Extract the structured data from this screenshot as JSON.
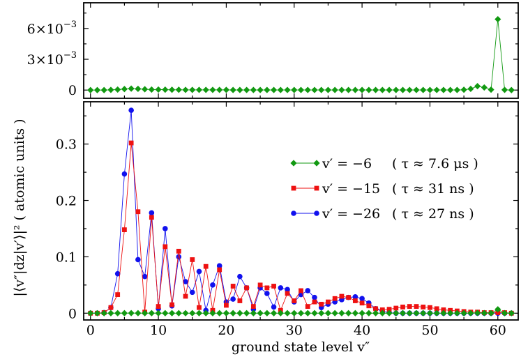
{
  "chart_data": {
    "type": "line",
    "xlabel": "ground state level  v″",
    "ylabel": "|⟨v″|dz|v′⟩|² ( atomic units )",
    "x_range": [
      -1,
      63
    ],
    "x_ticks": [
      "0",
      "10",
      "20",
      "30",
      "40",
      "50",
      "60"
    ],
    "x_tick_values": [
      0,
      10,
      20,
      30,
      40,
      50,
      60
    ],
    "top_panel": {
      "ylim": [
        -0.0008,
        0.0085
      ],
      "y_tick_values": [
        0,
        0.003,
        0.006
      ],
      "y_tick_labels": [
        {
          "mantissa": "0",
          "exponent": ""
        },
        {
          "mantissa": "3×10",
          "exponent": "−3"
        },
        {
          "mantissa": "6×10",
          "exponent": "−3"
        }
      ]
    },
    "bottom_panel": {
      "ylim": [
        -0.012,
        0.375
      ],
      "y_tick_values": [
        0,
        0.1,
        0.2,
        0.3
      ],
      "y_tick_labels": [
        "0",
        "0.1",
        "0.2",
        "0.3"
      ]
    },
    "series": [
      {
        "name": "v′ = −6",
        "legend_note": "( τ ≈ 7.6 μs )",
        "color": "#119911",
        "marker": "diamond",
        "x": [
          0,
          1,
          2,
          3,
          4,
          5,
          6,
          7,
          8,
          9,
          10,
          11,
          12,
          13,
          14,
          15,
          16,
          17,
          18,
          19,
          20,
          21,
          22,
          23,
          24,
          25,
          26,
          27,
          28,
          29,
          30,
          31,
          32,
          33,
          34,
          35,
          36,
          37,
          38,
          39,
          40,
          41,
          42,
          43,
          44,
          45,
          46,
          47,
          48,
          49,
          50,
          51,
          52,
          53,
          54,
          55,
          56,
          57,
          58,
          59,
          60,
          61,
          62
        ],
        "values": [
          0,
          0,
          0,
          2e-05,
          5e-05,
          0.0001,
          0.00014,
          0.00012,
          8e-05,
          5e-05,
          5e-05,
          4e-05,
          3e-05,
          3e-05,
          2e-05,
          2e-05,
          2e-05,
          2e-05,
          2e-05,
          2e-05,
          2e-05,
          1e-05,
          1e-05,
          1e-05,
          1e-05,
          1e-05,
          1e-05,
          1e-05,
          1e-05,
          1e-05,
          1e-05,
          1e-05,
          1e-05,
          1e-05,
          1e-05,
          1e-05,
          1e-05,
          1e-05,
          1e-05,
          1e-05,
          1e-05,
          1e-05,
          1e-05,
          1e-05,
          1e-05,
          1e-05,
          1e-05,
          1e-05,
          1e-05,
          1e-05,
          1e-05,
          1e-05,
          1e-05,
          1e-05,
          1e-05,
          3e-05,
          0.00012,
          0.00038,
          0.00025,
          4e-05,
          0.0069,
          2e-05,
          0
        ]
      },
      {
        "name": "v′ = −15",
        "legend_note": "( τ ≈ 31 ns )",
        "color": "#ee1111",
        "marker": "square",
        "x": [
          0,
          1,
          2,
          3,
          4,
          5,
          6,
          7,
          8,
          9,
          10,
          11,
          12,
          13,
          14,
          15,
          16,
          17,
          18,
          19,
          20,
          21,
          22,
          23,
          24,
          25,
          26,
          27,
          28,
          29,
          30,
          31,
          32,
          33,
          34,
          35,
          36,
          37,
          38,
          39,
          40,
          41,
          42,
          43,
          44,
          45,
          46,
          47,
          48,
          49,
          50,
          51,
          52,
          53,
          54,
          55,
          56,
          57,
          58,
          59,
          60,
          61,
          62
        ],
        "values": [
          0,
          0,
          0.001,
          0.01,
          0.033,
          0.148,
          0.302,
          0.18,
          0.002,
          0.17,
          0.012,
          0.118,
          0.015,
          0.11,
          0.03,
          0.095,
          0.01,
          0.083,
          0.005,
          0.077,
          0.014,
          0.048,
          0.022,
          0.045,
          0.012,
          0.05,
          0.045,
          0.048,
          0.005,
          0.035,
          0.022,
          0.04,
          0.012,
          0.02,
          0.016,
          0.02,
          0.026,
          0.03,
          0.028,
          0.022,
          0.018,
          0.013,
          0.008,
          0.006,
          0.007,
          0.009,
          0.011,
          0.012,
          0.012,
          0.011,
          0.01,
          0.008,
          0.006,
          0.005,
          0.004,
          0.003,
          0.002,
          0.002,
          0.001,
          0.001,
          0.001,
          0.001,
          0
        ]
      },
      {
        "name": "v′ = −26",
        "legend_note": "( τ ≈ 27 ns )",
        "color": "#1111ee",
        "marker": "circle",
        "x": [
          0,
          1,
          2,
          3,
          4,
          5,
          6,
          7,
          8,
          9,
          10,
          11,
          12,
          13,
          14,
          15,
          16,
          17,
          18,
          19,
          20,
          21,
          22,
          23,
          24,
          25,
          26,
          27,
          28,
          29,
          30,
          31,
          32,
          33,
          34,
          35,
          36,
          37,
          38,
          39,
          40,
          41,
          42,
          43,
          44,
          45,
          46,
          47,
          48,
          49,
          50,
          51,
          52,
          53,
          54,
          55,
          56,
          57,
          58,
          59,
          60,
          61,
          62
        ],
        "values": [
          0,
          0,
          0.001,
          0.01,
          0.07,
          0.247,
          0.36,
          0.095,
          0.065,
          0.178,
          0.008,
          0.15,
          0.013,
          0.1,
          0.056,
          0.037,
          0.074,
          0.005,
          0.05,
          0.084,
          0.02,
          0.025,
          0.065,
          0.045,
          0.007,
          0.045,
          0.035,
          0.011,
          0.045,
          0.042,
          0.02,
          0.033,
          0.04,
          0.028,
          0.01,
          0.016,
          0.02,
          0.024,
          0.028,
          0.029,
          0.026,
          0.018,
          0.008,
          0.003,
          0.001,
          0,
          0,
          0,
          0,
          0,
          0,
          0,
          0,
          0,
          0,
          0,
          0,
          0,
          0,
          0,
          0,
          0,
          0
        ]
      }
    ]
  }
}
